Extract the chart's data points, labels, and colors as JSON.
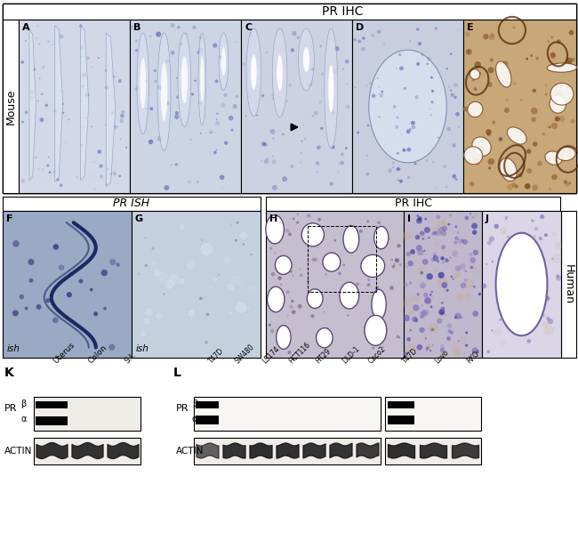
{
  "figure_width": 6.5,
  "figure_height": 6.26,
  "dpi": 100,
  "bg_color": "#ffffff",
  "top_ihc_label": "PR IHC",
  "mouse_label": "Mouse",
  "pr_ish_label": "PR ISH",
  "mid_ihc_label": "PR IHC",
  "human_label": "Human",
  "panel_labels_top": [
    "A",
    "B",
    "C",
    "D",
    "E"
  ],
  "panel_labels_mid": [
    "F",
    "G",
    "H",
    "I",
    "J"
  ],
  "wb_k_label": "K",
  "wb_l_label": "L",
  "pr_label": "PR",
  "actin_label": "ACTIN",
  "ish_text": "ish",
  "wb_k_lanes": [
    "Uterus",
    "Colon",
    "S.I."
  ],
  "wb_l_lanes1": [
    "T47D",
    "SW480",
    "LS174",
    "HCT116",
    "HT29",
    "DLD-1",
    "Caco2"
  ],
  "wb_l_lanes2": [
    "T47D",
    "Lovo",
    "RKO"
  ],
  "col_A": "#d0d4e0",
  "col_B": "#ccd2e2",
  "col_C": "#ccd0e0",
  "col_D": "#c8cede",
  "col_E_bg": "#c8a878",
  "col_F": "#9aaac4",
  "col_G": "#c2cede",
  "col_H": "#c8c0d0",
  "col_I": "#c4bccc",
  "col_J": "#dcd8e8",
  "wb_bg": "#f0ede8",
  "wb_bg2": "#f8f6f2"
}
